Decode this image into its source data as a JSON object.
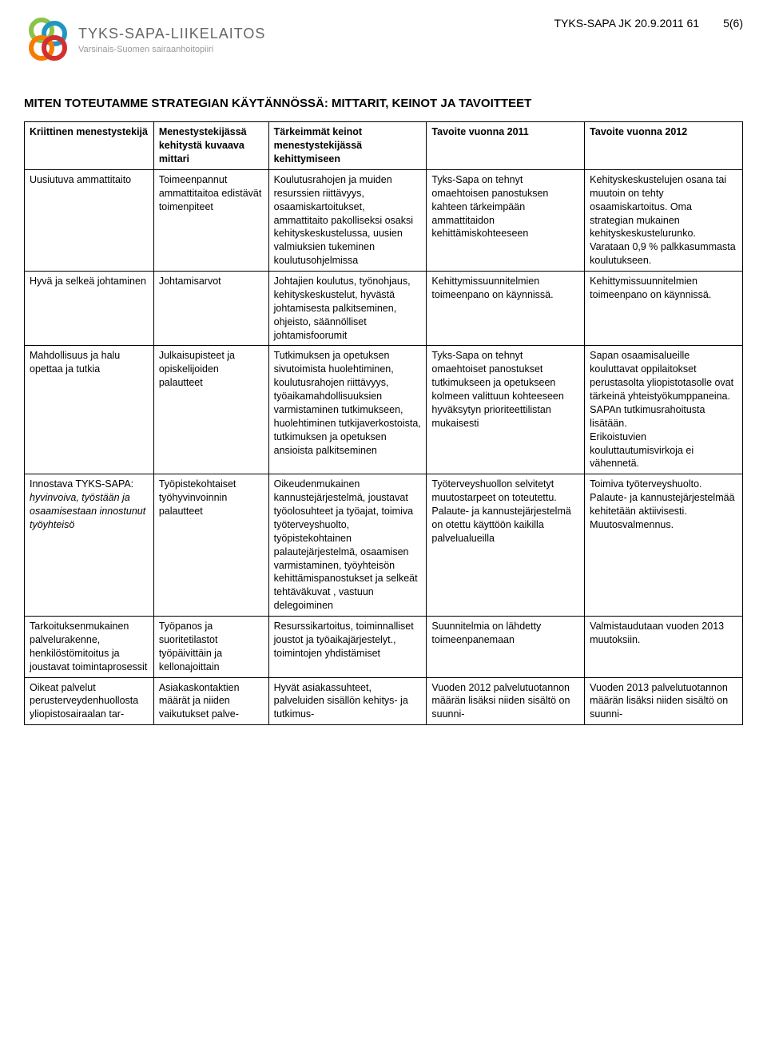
{
  "header": {
    "logo_main": "TYKS-SAPA-LIIKELAITOS",
    "logo_sub": "Varsinais-Suomen sairaanhoitopiiri",
    "doc_ref": "TYKS-SAPA JK 20.9.2011 61",
    "page_num": "5(6)"
  },
  "section_title": "MITEN TOTEUTAMME STRATEGIAN KÄYTÄNNÖSSÄ: MITTARIT, KEINOT JA TAVOITTEET",
  "table": {
    "columns": [
      "Kriittinen menestystekijä",
      "Menestystekijässä kehitystä kuvaava mittari",
      "Tärkeimmät keinot menestystekijässä kehittymiseen",
      "Tavoite vuonna 2011",
      "Tavoite vuonna 2012"
    ],
    "rows": [
      {
        "c0": "Uusiutuva ammattitaito",
        "c1": "Toimeenpannut ammattitaitoa edistävät toimenpiteet",
        "c2": "Koulutusrahojen ja muiden resurssien riittävyys, osaamiskartoitukset, ammattitaito pakolliseksi osaksi kehityskeskustelussa, uusien valmiuksien tukeminen koulutusohjelmissa",
        "c3": "Tyks-Sapa on tehnyt omaehtoisen panostuksen kahteen tärkeimpään ammattitaidon kehittämiskohteeseen",
        "c4": "Kehityskeskustelujen osana tai muutoin on tehty osaamiskartoitus. Oma strategian mukainen kehityskeskustelurunko.\nVarataan 0,9 % palkkasummasta koulutukseen."
      },
      {
        "c0": "Hyvä ja selkeä johtaminen",
        "c1": "Johtamisarvot",
        "c2": "Johtajien koulutus, työnohjaus, kehityskeskustelut, hyvästä johtamisesta palkitseminen, ohjeisto, säännölliset johtamisfoorumit",
        "c3": "Kehittymissuunnitelmien toimeenpano on käynnissä.",
        "c4": "Kehittymissuunnitelmien toimeenpano on käynnissä."
      },
      {
        "c0": "Mahdollisuus ja halu opettaa ja tutkia",
        "c1": "Julkaisupisteet ja opiskelijoiden palautteet",
        "c2": "Tutkimuksen ja opetuksen sivutoimista huolehtiminen, koulutusrahojen riittävyys, työaikamahdollisuuksien varmistaminen tutkimukseen, huolehtiminen tutkijaverkostoista, tutkimuksen ja opetuksen ansioista palkitseminen",
        "c3": "Tyks-Sapa on tehnyt omaehtoiset panostukset tutkimukseen ja opetukseen kolmeen valittuun kohteeseen hyväksytyn prioriteettilistan mukaisesti",
        "c4": "Sapan osaamisalueille kouluttavat oppilaitokset perustasolta yliopistotasolle ovat tärkeinä yhteistyökumppaneina. SAPAn tutkimusrahoitusta lisätään.\nErikoistuvien kouluttautumisvirkoja ei vähennetä."
      },
      {
        "c0_html": "Innostava TYKS-SAPA: <span class=\"italic\">hyvinvoiva, työstään ja osaamisestaan innostunut työyhteisö</span>",
        "c1": "Työpistekohtaiset työhyvinvoinnin palautteet",
        "c2": "Oikeudenmukainen kannustejärjestelmä, joustavat työolosuhteet ja työajat, toimiva työterveyshuolto, työpistekohtainen palautejärjestelmä, osaamisen varmistaminen, työyhteisön kehittämispanostukset ja selkeät tehtäväkuvat , vastuun delegoiminen",
        "c3": "Työterveyshuollon selvitetyt muutostarpeet on toteutettu. Palaute- ja kannustejärjestelmä on otettu käyttöön kaikilla palvelualueilla",
        "c4": "Toimiva työterveyshuolto.\nPalaute- ja kannustejärjestelmää kehitetään aktiivisesti.\nMuutosvalmennus."
      },
      {
        "c0": "Tarkoituksenmukainen palvelurakenne, henkilöstömitoitus ja joustavat toimintaprosessit",
        "c1": "Työpanos ja suoritetilastot työpäivittäin ja kellonajoittain",
        "c2": "Resurssikartoitus, toiminnalliset joustot ja työaikajärjestelyt., toimintojen yhdistämiset",
        "c3": "Suunnitelmia on lähdetty toimeenpanemaan",
        "c4": "Valmistaudutaan vuoden 2013 muutoksiin."
      },
      {
        "c0": "Oikeat palvelut perusterveydenhuollosta yliopistosairaalan tar-",
        "c1": "Asiakaskontaktien määrät ja niiden vaikutukset palve-",
        "c2": "Hyvät asiakassuhteet, palveluiden sisällön kehitys- ja tutkimus-",
        "c3": "Vuoden 2012 palvelutuotannon määrän lisäksi niiden sisältö on suunni-",
        "c4": "Vuoden 2013 palvelutuotannon määrän lisäksi niiden sisältö on suunni-"
      }
    ]
  },
  "colors": {
    "logo_green": "#8bc34a",
    "logo_blue": "#2196c3",
    "logo_orange": "#f57c00",
    "logo_red": "#d32f2f",
    "text_gray": "#666666",
    "text_light": "#999999",
    "border": "#000000",
    "bg": "#ffffff"
  }
}
